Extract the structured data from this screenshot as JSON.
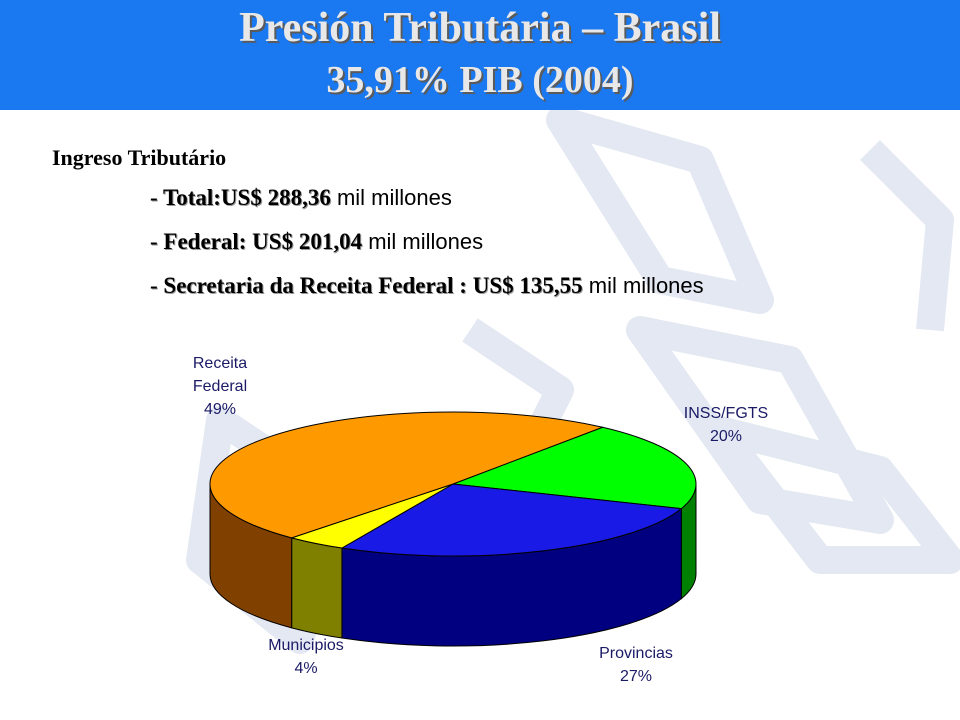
{
  "slide": {
    "title_line1": "Presión Tributária – Brasil",
    "title_line2": "35,91% PIB (2004)",
    "heading": "Ingreso Tributário",
    "bullets": [
      {
        "label": "- Total:US$ 288,36",
        "unit": " mil millones"
      },
      {
        "label": "- Federal: US$ 201,04",
        "unit": " mil millones"
      },
      {
        "label": "- Secretaria da Receita Federal : US$  135,55",
        "unit": " mil millones"
      }
    ]
  },
  "chart_data": {
    "type": "pie",
    "title": "",
    "slices": [
      {
        "label_lines": [
          "INSS/FGTS",
          "20%"
        ],
        "value": 20,
        "color": "#00ff00",
        "side_color": "#008000"
      },
      {
        "label_lines": [
          "Provincias",
          "27%"
        ],
        "value": 27,
        "color": "#1a1ae6",
        "side_color": "#000080"
      },
      {
        "label_lines": [
          "Municipios",
          "4%"
        ],
        "value": 4,
        "color": "#ffff00",
        "side_color": "#808000"
      },
      {
        "label_lines": [
          "Receita",
          "Federal",
          "49%"
        ],
        "value": 49,
        "color": "#ff9900",
        "side_color": "#804000"
      }
    ]
  }
}
